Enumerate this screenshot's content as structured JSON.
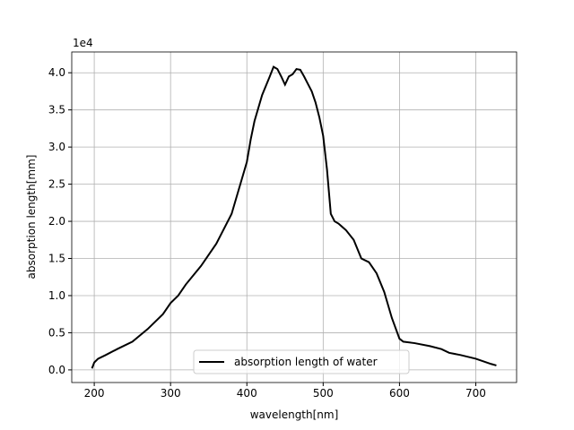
{
  "chart_data": {
    "type": "line",
    "xlabel": "wavelength[nm]",
    "ylabel": "absorption length[mm]",
    "y_offset_text": "1e4",
    "x": [
      197,
      200,
      205,
      215,
      230,
      250,
      270,
      290,
      300,
      310,
      320,
      340,
      360,
      380,
      390,
      400,
      405,
      410,
      420,
      430,
      435,
      440,
      445,
      450,
      455,
      460,
      465,
      470,
      475,
      480,
      485,
      490,
      495,
      500,
      505,
      510,
      515,
      520,
      530,
      540,
      550,
      560,
      570,
      580,
      590,
      600,
      605,
      620,
      640,
      655,
      665,
      680,
      700,
      720,
      727
    ],
    "series": [
      {
        "name": "absorption length of  water",
        "color": "#000000",
        "values": [
          0.02,
          0.1,
          0.15,
          0.2,
          0.28,
          0.38,
          0.55,
          0.75,
          0.9,
          1.0,
          1.15,
          1.4,
          1.7,
          2.1,
          2.45,
          2.8,
          3.1,
          3.35,
          3.7,
          3.95,
          4.08,
          4.05,
          3.95,
          3.84,
          3.95,
          3.98,
          4.05,
          4.04,
          3.95,
          3.85,
          3.75,
          3.6,
          3.4,
          3.15,
          2.7,
          2.1,
          2.0,
          1.97,
          1.88,
          1.75,
          1.5,
          1.45,
          1.3,
          1.05,
          0.7,
          0.42,
          0.38,
          0.36,
          0.32,
          0.28,
          0.23,
          0.2,
          0.15,
          0.08,
          0.06
        ]
      }
    ],
    "xlim": [
      170.5,
      753.5
    ],
    "ylim": [
      -0.17,
      4.28
    ],
    "xticks": [
      200,
      300,
      400,
      500,
      600,
      700
    ],
    "yticks": [
      {
        "value": 0,
        "label": "0.0"
      },
      {
        "value": 0.5,
        "label": "0.5"
      },
      {
        "value": 1,
        "label": "1.0"
      },
      {
        "value": 1.5,
        "label": "1.5"
      },
      {
        "value": 2,
        "label": "2.0"
      },
      {
        "value": 2.5,
        "label": "2.5"
      },
      {
        "value": 3,
        "label": "3.0"
      },
      {
        "value": 3.5,
        "label": "3.5"
      },
      {
        "value": 4,
        "label": "4.0"
      }
    ],
    "grid": true,
    "legend": "lower center"
  }
}
